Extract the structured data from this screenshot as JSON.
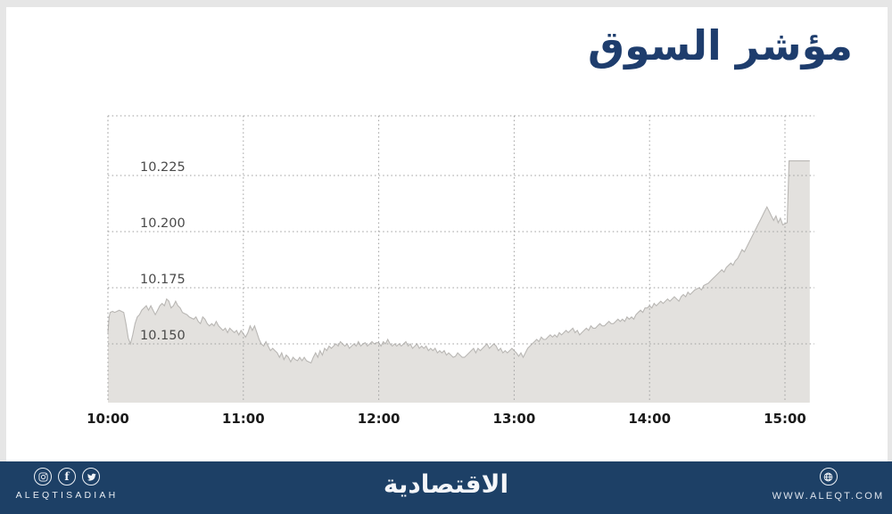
{
  "header": {
    "title": "مؤشر السوق"
  },
  "chart_data": {
    "type": "area",
    "title": "مؤشر السوق",
    "xlabel": "",
    "ylabel": "",
    "x_tick_labels": [
      "10:00",
      "11:00",
      "12:00",
      "13:00",
      "14:00",
      "15:00"
    ],
    "x_tick_minutes": [
      0,
      60,
      120,
      180,
      240,
      300
    ],
    "y_tick_labels": [
      "10.225",
      "10.200",
      "10.175",
      "10.150"
    ],
    "y_tick_values": [
      10.225,
      10.2,
      10.175,
      10.15
    ],
    "xlim_minutes": [
      0,
      311
    ],
    "ylim": [
      10.122,
      10.252
    ],
    "grid": "dotted",
    "legend": "none",
    "fill_color": "#e3e1de",
    "line_color": "#b9b7b4",
    "points": [
      [
        0,
        10.155
      ],
      [
        0.5,
        10.162
      ],
      [
        1,
        10.164
      ],
      [
        2,
        10.1645
      ],
      [
        3,
        10.164
      ],
      [
        4,
        10.1645
      ],
      [
        5,
        10.165
      ],
      [
        6,
        10.1645
      ],
      [
        7,
        10.164
      ],
      [
        8,
        10.159
      ],
      [
        9,
        10.1525
      ],
      [
        10,
        10.15
      ],
      [
        11,
        10.154
      ],
      [
        12,
        10.159
      ],
      [
        13,
        10.162
      ],
      [
        14,
        10.163
      ],
      [
        15,
        10.165
      ],
      [
        16,
        10.166
      ],
      [
        17,
        10.167
      ],
      [
        18,
        10.165
      ],
      [
        19,
        10.167
      ],
      [
        20,
        10.165
      ],
      [
        21,
        10.163
      ],
      [
        22,
        10.165
      ],
      [
        23,
        10.167
      ],
      [
        24,
        10.168
      ],
      [
        25,
        10.167
      ],
      [
        26,
        10.17
      ],
      [
        27,
        10.169
      ],
      [
        28,
        10.166
      ],
      [
        29,
        10.167
      ],
      [
        30,
        10.169
      ],
      [
        31,
        10.167
      ],
      [
        32,
        10.166
      ],
      [
        33,
        10.164
      ],
      [
        34,
        10.1635
      ],
      [
        35,
        10.163
      ],
      [
        36,
        10.162
      ],
      [
        38,
        10.161
      ],
      [
        39,
        10.162
      ],
      [
        40,
        10.16
      ],
      [
        41,
        10.159
      ],
      [
        42,
        10.162
      ],
      [
        43,
        10.161
      ],
      [
        44,
        10.159
      ],
      [
        45,
        10.158
      ],
      [
        46,
        10.159
      ],
      [
        47,
        10.158
      ],
      [
        48,
        10.16
      ],
      [
        49,
        10.158
      ],
      [
        50,
        10.157
      ],
      [
        51,
        10.156
      ],
      [
        52,
        10.157
      ],
      [
        53,
        10.155
      ],
      [
        54,
        10.157
      ],
      [
        55,
        10.156
      ],
      [
        56,
        10.155
      ],
      [
        57,
        10.156
      ],
      [
        58,
        10.154
      ],
      [
        59,
        10.156
      ],
      [
        60,
        10.1545
      ],
      [
        61,
        10.153
      ],
      [
        62,
        10.155
      ],
      [
        63,
        10.158
      ],
      [
        64,
        10.156
      ],
      [
        65,
        10.158
      ],
      [
        66,
        10.155
      ],
      [
        67,
        10.152
      ],
      [
        68,
        10.15
      ],
      [
        69,
        10.149
      ],
      [
        70,
        10.151
      ],
      [
        71,
        10.149
      ],
      [
        72,
        10.147
      ],
      [
        73,
        10.148
      ],
      [
        74,
        10.147
      ],
      [
        75,
        10.146
      ],
      [
        76,
        10.144
      ],
      [
        77,
        10.146
      ],
      [
        78,
        10.143
      ],
      [
        79,
        10.145
      ],
      [
        80,
        10.144
      ],
      [
        81,
        10.142
      ],
      [
        82,
        10.144
      ],
      [
        83,
        10.143
      ],
      [
        84,
        10.1425
      ],
      [
        85,
        10.144
      ],
      [
        86,
        10.1425
      ],
      [
        87,
        10.144
      ],
      [
        88,
        10.1425
      ],
      [
        89,
        10.142
      ],
      [
        90,
        10.1415
      ],
      [
        91,
        10.144
      ],
      [
        92,
        10.146
      ],
      [
        93,
        10.144
      ],
      [
        94,
        10.147
      ],
      [
        95,
        10.145
      ],
      [
        96,
        10.148
      ],
      [
        97,
        10.147
      ],
      [
        98,
        10.149
      ],
      [
        99,
        10.148
      ],
      [
        100,
        10.149
      ],
      [
        101,
        10.15
      ],
      [
        102,
        10.149
      ],
      [
        103,
        10.151
      ],
      [
        104,
        10.15
      ],
      [
        105,
        10.149
      ],
      [
        106,
        10.15
      ],
      [
        107,
        10.148
      ],
      [
        108,
        10.149
      ],
      [
        109,
        10.15
      ],
      [
        110,
        10.149
      ],
      [
        111,
        10.151
      ],
      [
        112,
        10.149
      ],
      [
        113,
        10.15
      ],
      [
        114,
        10.1505
      ],
      [
        115,
        10.149
      ],
      [
        116,
        10.15
      ],
      [
        117,
        10.151
      ],
      [
        118,
        10.15
      ],
      [
        119,
        10.1505
      ],
      [
        120,
        10.1505
      ],
      [
        121,
        10.149
      ],
      [
        122,
        10.151
      ],
      [
        123,
        10.15
      ],
      [
        124,
        10.152
      ],
      [
        125,
        10.15
      ],
      [
        126,
        10.149
      ],
      [
        127,
        10.15
      ],
      [
        128,
        10.149
      ],
      [
        129,
        10.15
      ],
      [
        130,
        10.149
      ],
      [
        131,
        10.15
      ],
      [
        132,
        10.151
      ],
      [
        133,
        10.149
      ],
      [
        134,
        10.15
      ],
      [
        135,
        10.148
      ],
      [
        136,
        10.149
      ],
      [
        137,
        10.15
      ],
      [
        138,
        10.148
      ],
      [
        139,
        10.149
      ],
      [
        140,
        10.148
      ],
      [
        141,
        10.149
      ],
      [
        142,
        10.147
      ],
      [
        143,
        10.148
      ],
      [
        144,
        10.147
      ],
      [
        145,
        10.148
      ],
      [
        146,
        10.146
      ],
      [
        147,
        10.147
      ],
      [
        148,
        10.146
      ],
      [
        149,
        10.147
      ],
      [
        150,
        10.145
      ],
      [
        151,
        10.146
      ],
      [
        152,
        10.145
      ],
      [
        153,
        10.144
      ],
      [
        154,
        10.1445
      ],
      [
        155,
        10.146
      ],
      [
        156,
        10.145
      ],
      [
        157,
        10.144
      ],
      [
        158,
        10.144
      ],
      [
        159,
        10.145
      ],
      [
        160,
        10.146
      ],
      [
        161,
        10.147
      ],
      [
        162,
        10.148
      ],
      [
        163,
        10.146
      ],
      [
        164,
        10.148
      ],
      [
        165,
        10.147
      ],
      [
        166,
        10.148
      ],
      [
        167,
        10.149
      ],
      [
        168,
        10.15
      ],
      [
        169,
        10.148
      ],
      [
        170,
        10.149
      ],
      [
        171,
        10.15
      ],
      [
        172,
        10.149
      ],
      [
        173,
        10.147
      ],
      [
        174,
        10.148
      ],
      [
        175,
        10.146
      ],
      [
        176,
        10.147
      ],
      [
        177,
        10.146
      ],
      [
        178,
        10.147
      ],
      [
        179,
        10.148
      ],
      [
        180,
        10.147
      ],
      [
        181,
        10.146
      ],
      [
        182,
        10.1445
      ],
      [
        183,
        10.146
      ],
      [
        184,
        10.144
      ],
      [
        185,
        10.146
      ],
      [
        186,
        10.148
      ],
      [
        187,
        10.149
      ],
      [
        188,
        10.15
      ],
      [
        189,
        10.151
      ],
      [
        190,
        10.152
      ],
      [
        191,
        10.151
      ],
      [
        192,
        10.153
      ],
      [
        193,
        10.152
      ],
      [
        194,
        10.152
      ],
      [
        195,
        10.153
      ],
      [
        196,
        10.154
      ],
      [
        197,
        10.153
      ],
      [
        198,
        10.154
      ],
      [
        199,
        10.153
      ],
      [
        200,
        10.155
      ],
      [
        201,
        10.154
      ],
      [
        202,
        10.155
      ],
      [
        203,
        10.156
      ],
      [
        204,
        10.155
      ],
      [
        205,
        10.156
      ],
      [
        206,
        10.157
      ],
      [
        207,
        10.155
      ],
      [
        208,
        10.156
      ],
      [
        209,
        10.154
      ],
      [
        210,
        10.155
      ],
      [
        211,
        10.156
      ],
      [
        212,
        10.157
      ],
      [
        213,
        10.156
      ],
      [
        214,
        10.158
      ],
      [
        215,
        10.157
      ],
      [
        216,
        10.157
      ],
      [
        217,
        10.158
      ],
      [
        218,
        10.159
      ],
      [
        219,
        10.158
      ],
      [
        220,
        10.158
      ],
      [
        221,
        10.159
      ],
      [
        222,
        10.16
      ],
      [
        223,
        10.159
      ],
      [
        224,
        10.159
      ],
      [
        225,
        10.16
      ],
      [
        226,
        10.161
      ],
      [
        227,
        10.16
      ],
      [
        228,
        10.161
      ],
      [
        229,
        10.16
      ],
      [
        230,
        10.162
      ],
      [
        231,
        10.161
      ],
      [
        232,
        10.162
      ],
      [
        233,
        10.161
      ],
      [
        234,
        10.163
      ],
      [
        235,
        10.164
      ],
      [
        236,
        10.165
      ],
      [
        237,
        10.164
      ],
      [
        238,
        10.166
      ],
      [
        239,
        10.166
      ],
      [
        240,
        10.167
      ],
      [
        241,
        10.166
      ],
      [
        242,
        10.168
      ],
      [
        243,
        10.167
      ],
      [
        244,
        10.168
      ],
      [
        245,
        10.169
      ],
      [
        246,
        10.168
      ],
      [
        247,
        10.169
      ],
      [
        248,
        10.17
      ],
      [
        249,
        10.169
      ],
      [
        250,
        10.17
      ],
      [
        251,
        10.171
      ],
      [
        252,
        10.17
      ],
      [
        253,
        10.169
      ],
      [
        254,
        10.171
      ],
      [
        255,
        10.172
      ],
      [
        256,
        10.171
      ],
      [
        257,
        10.173
      ],
      [
        258,
        10.172
      ],
      [
        259,
        10.173
      ],
      [
        260,
        10.174
      ],
      [
        261,
        10.1745
      ],
      [
        262,
        10.175
      ],
      [
        263,
        10.174
      ],
      [
        264,
        10.176
      ],
      [
        265,
        10.1765
      ],
      [
        266,
        10.177
      ],
      [
        267,
        10.178
      ],
      [
        268,
        10.179
      ],
      [
        269,
        10.18
      ],
      [
        270,
        10.181
      ],
      [
        271,
        10.182
      ],
      [
        272,
        10.183
      ],
      [
        273,
        10.182
      ],
      [
        274,
        10.184
      ],
      [
        275,
        10.185
      ],
      [
        276,
        10.186
      ],
      [
        277,
        10.185
      ],
      [
        278,
        10.187
      ],
      [
        279,
        10.188
      ],
      [
        280,
        10.19
      ],
      [
        281,
        10.192
      ],
      [
        282,
        10.191
      ],
      [
        283,
        10.193
      ],
      [
        284,
        10.195
      ],
      [
        285,
        10.197
      ],
      [
        286,
        10.199
      ],
      [
        287,
        10.201
      ],
      [
        288,
        10.203
      ],
      [
        289,
        10.205
      ],
      [
        290,
        10.207
      ],
      [
        291,
        10.209
      ],
      [
        292,
        10.211
      ],
      [
        293,
        10.209
      ],
      [
        294,
        10.207
      ],
      [
        295,
        10.205
      ],
      [
        296,
        10.207
      ],
      [
        297,
        10.204
      ],
      [
        298,
        10.206
      ],
      [
        299,
        10.203
      ],
      [
        300,
        10.2035
      ],
      [
        301,
        10.204
      ],
      [
        301.8,
        10.2315
      ],
      [
        311,
        10.2315
      ]
    ]
  },
  "footer": {
    "brand_latin": "ALEQTISADIAH",
    "brand_arabic": "الاقتصادية",
    "website": "WWW.ALEQT.COM",
    "bg_color": "#1d4066",
    "icons": [
      "instagram-icon",
      "facebook-icon",
      "twitter-icon",
      "globe-icon"
    ]
  },
  "colors": {
    "title_navy": "#1e3d6d",
    "page_bg": "#e6e6e6",
    "card_bg": "#ffffff",
    "grid": "#9e9e9e",
    "y_label": "#4a4a4a",
    "x_label": "#1a1a1a"
  }
}
